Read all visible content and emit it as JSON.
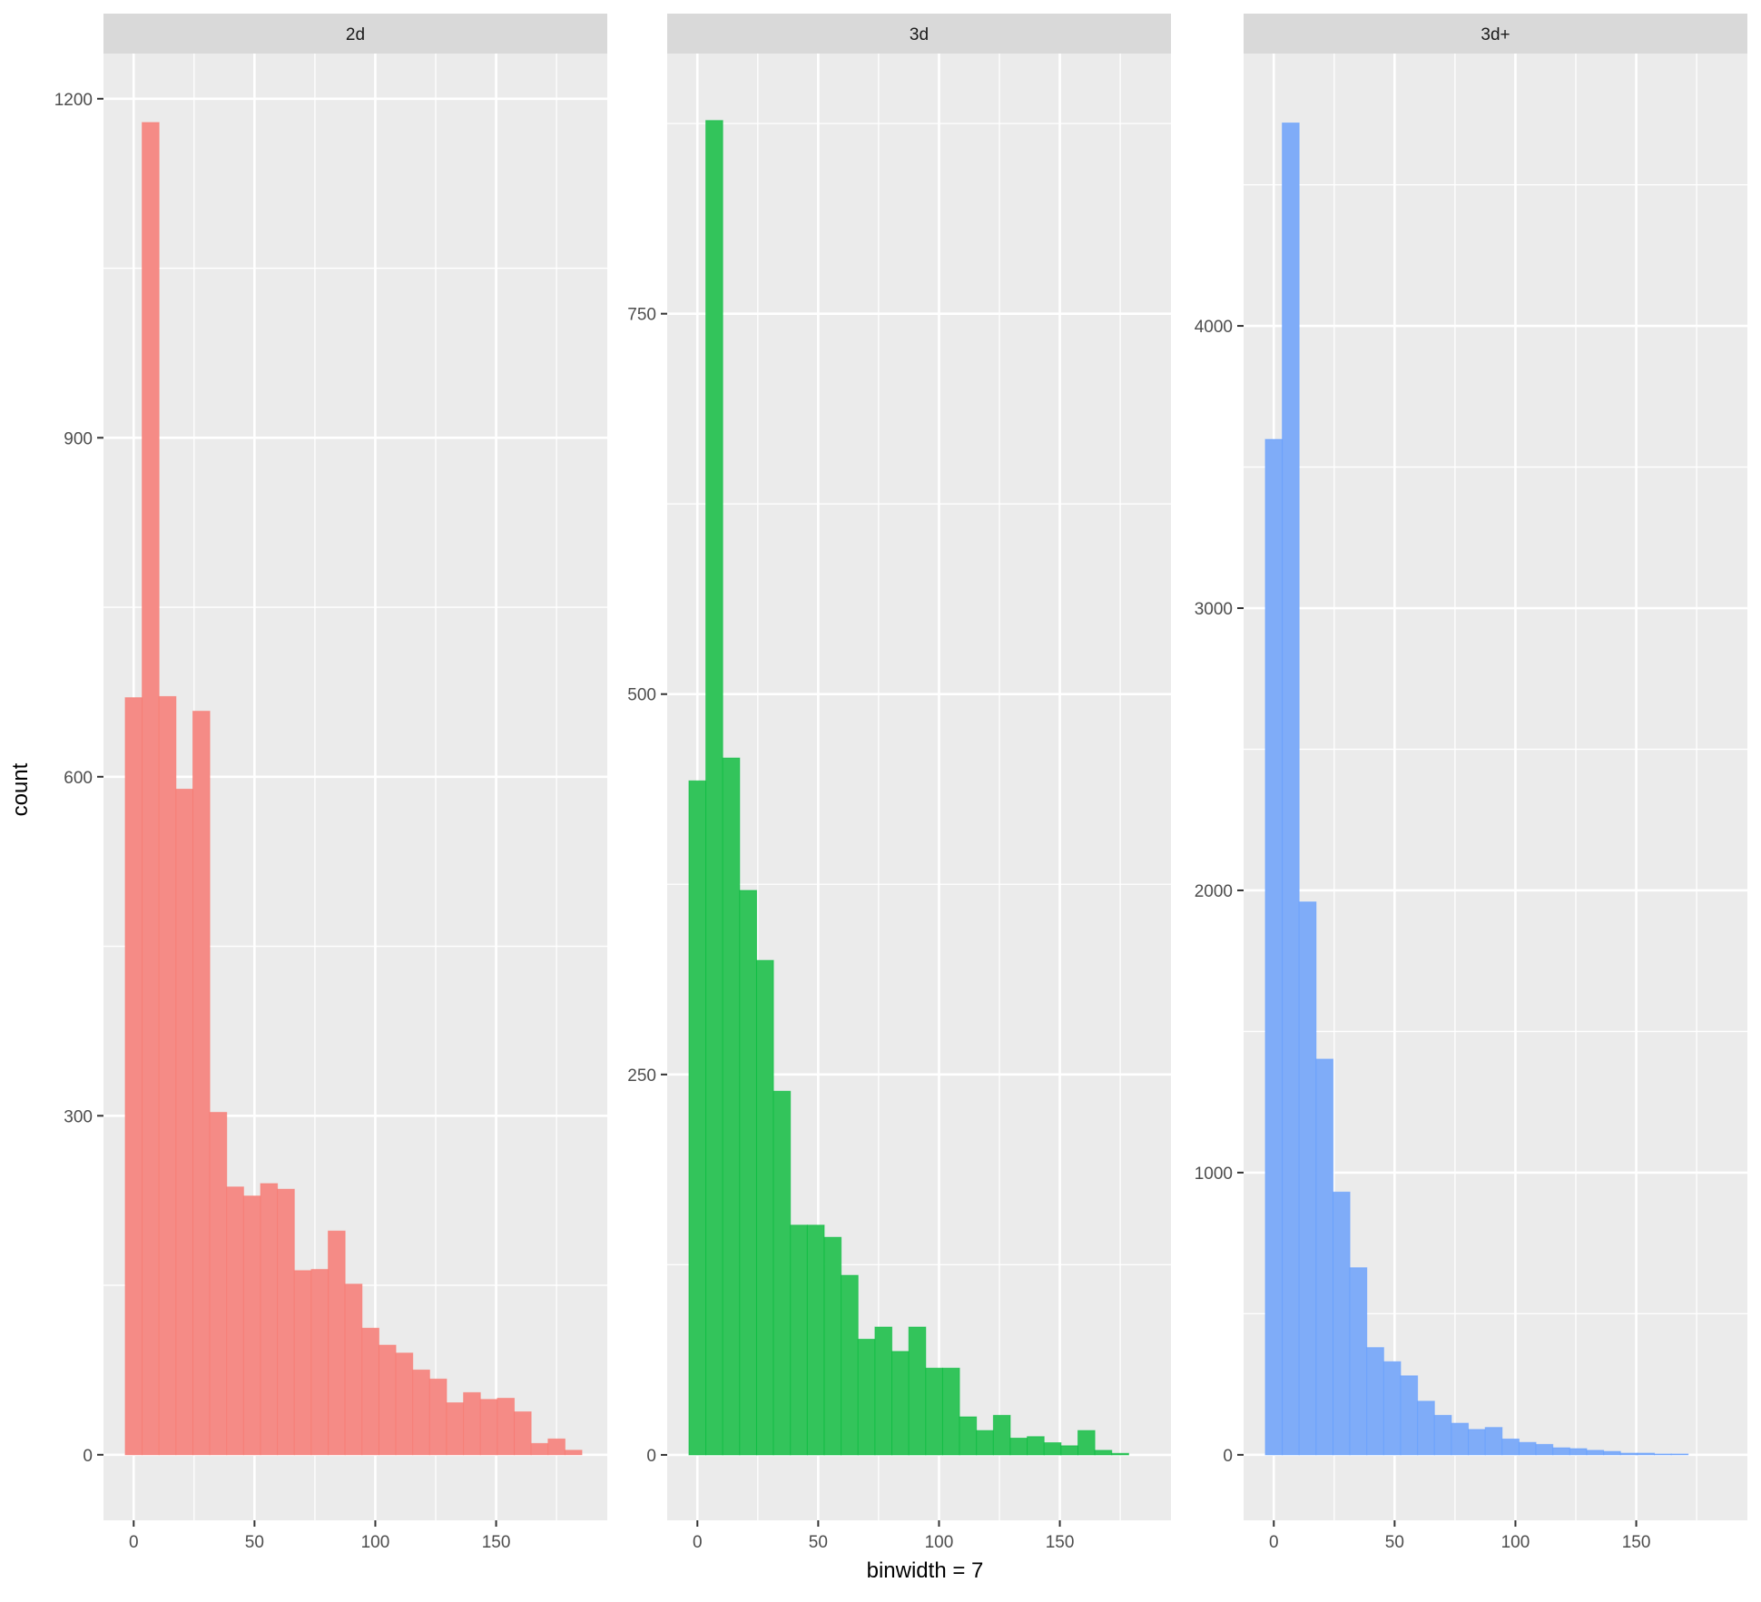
{
  "chart_data": {
    "type": "bar",
    "subtype": "faceted-histogram",
    "title": "",
    "xlabel": "binwidth = 7",
    "ylabel": "count",
    "binwidth": 7,
    "grid": true,
    "legend": null,
    "facets": [
      {
        "label": "2d",
        "color": "#F8766D",
        "fill": "#F58B86",
        "x_ticks": [
          0,
          50,
          100,
          150
        ],
        "y_ticks": [
          0,
          300,
          600,
          900,
          1200
        ],
        "xlim": [
          -12.5,
          196
        ],
        "ylim": [
          -58,
          1240
        ],
        "bin_centers": [
          0,
          7,
          14,
          21,
          28,
          35,
          42,
          49,
          56,
          63,
          70,
          77,
          84,
          91,
          98,
          105,
          112,
          119,
          126,
          133,
          140,
          147,
          154,
          161,
          168,
          175,
          182
        ],
        "values": [
          670,
          1179,
          671,
          589,
          658,
          303,
          237,
          229,
          240,
          235,
          163,
          164,
          198,
          151,
          112,
          97,
          90,
          75,
          67,
          46,
          55,
          49,
          50,
          38,
          10,
          14,
          4
        ]
      },
      {
        "label": "3d",
        "color": "#00BA38",
        "fill": "#33C45B",
        "x_ticks": [
          0,
          50,
          100,
          150
        ],
        "y_ticks": [
          0,
          250,
          500,
          750
        ],
        "xlim": [
          -12.5,
          196
        ],
        "ylim": [
          -43,
          921
        ],
        "bin_centers": [
          0,
          7,
          14,
          21,
          28,
          35,
          42,
          49,
          56,
          63,
          70,
          77,
          84,
          91,
          98,
          105,
          112,
          119,
          126,
          133,
          140,
          147,
          154,
          161,
          168,
          175
        ],
        "values": [
          443,
          877,
          458,
          371,
          325,
          239,
          151,
          151,
          143,
          118,
          76,
          84,
          68,
          84,
          57,
          57,
          25,
          16,
          26,
          11,
          12,
          8,
          6,
          16,
          3,
          1
        ]
      },
      {
        "label": "3d+",
        "color": "#619CFF",
        "fill": "#7FACF8",
        "x_ticks": [
          0,
          50,
          100,
          150
        ],
        "y_ticks": [
          0,
          1000,
          2000,
          3000,
          4000
        ],
        "xlim": [
          -12.5,
          196
        ],
        "ylim": [
          -232,
          4965
        ],
        "bin_centers": [
          0,
          7,
          14,
          21,
          28,
          35,
          42,
          49,
          56,
          63,
          70,
          77,
          84,
          91,
          98,
          105,
          112,
          119,
          126,
          133,
          140,
          147,
          154,
          161,
          168
        ],
        "values": [
          3598,
          4719,
          1959,
          1402,
          931,
          663,
          380,
          330,
          280,
          190,
          140,
          112,
          90,
          97,
          56,
          44,
          37,
          25,
          22,
          16,
          12,
          6,
          6,
          3,
          3
        ]
      }
    ]
  },
  "labels": {
    "y_axis_title": "count",
    "x_axis_title": "binwidth = 7",
    "facet_strips": [
      "2d",
      "3d",
      "3d+"
    ]
  },
  "style": {
    "panel_background": "#EBEBEB",
    "strip_background": "#D9D9D9",
    "grid_color": "#FFFFFF",
    "page_background": "#FFFFFF",
    "tick_color": "#333333",
    "tick_text_color": "#4D4D4D"
  }
}
